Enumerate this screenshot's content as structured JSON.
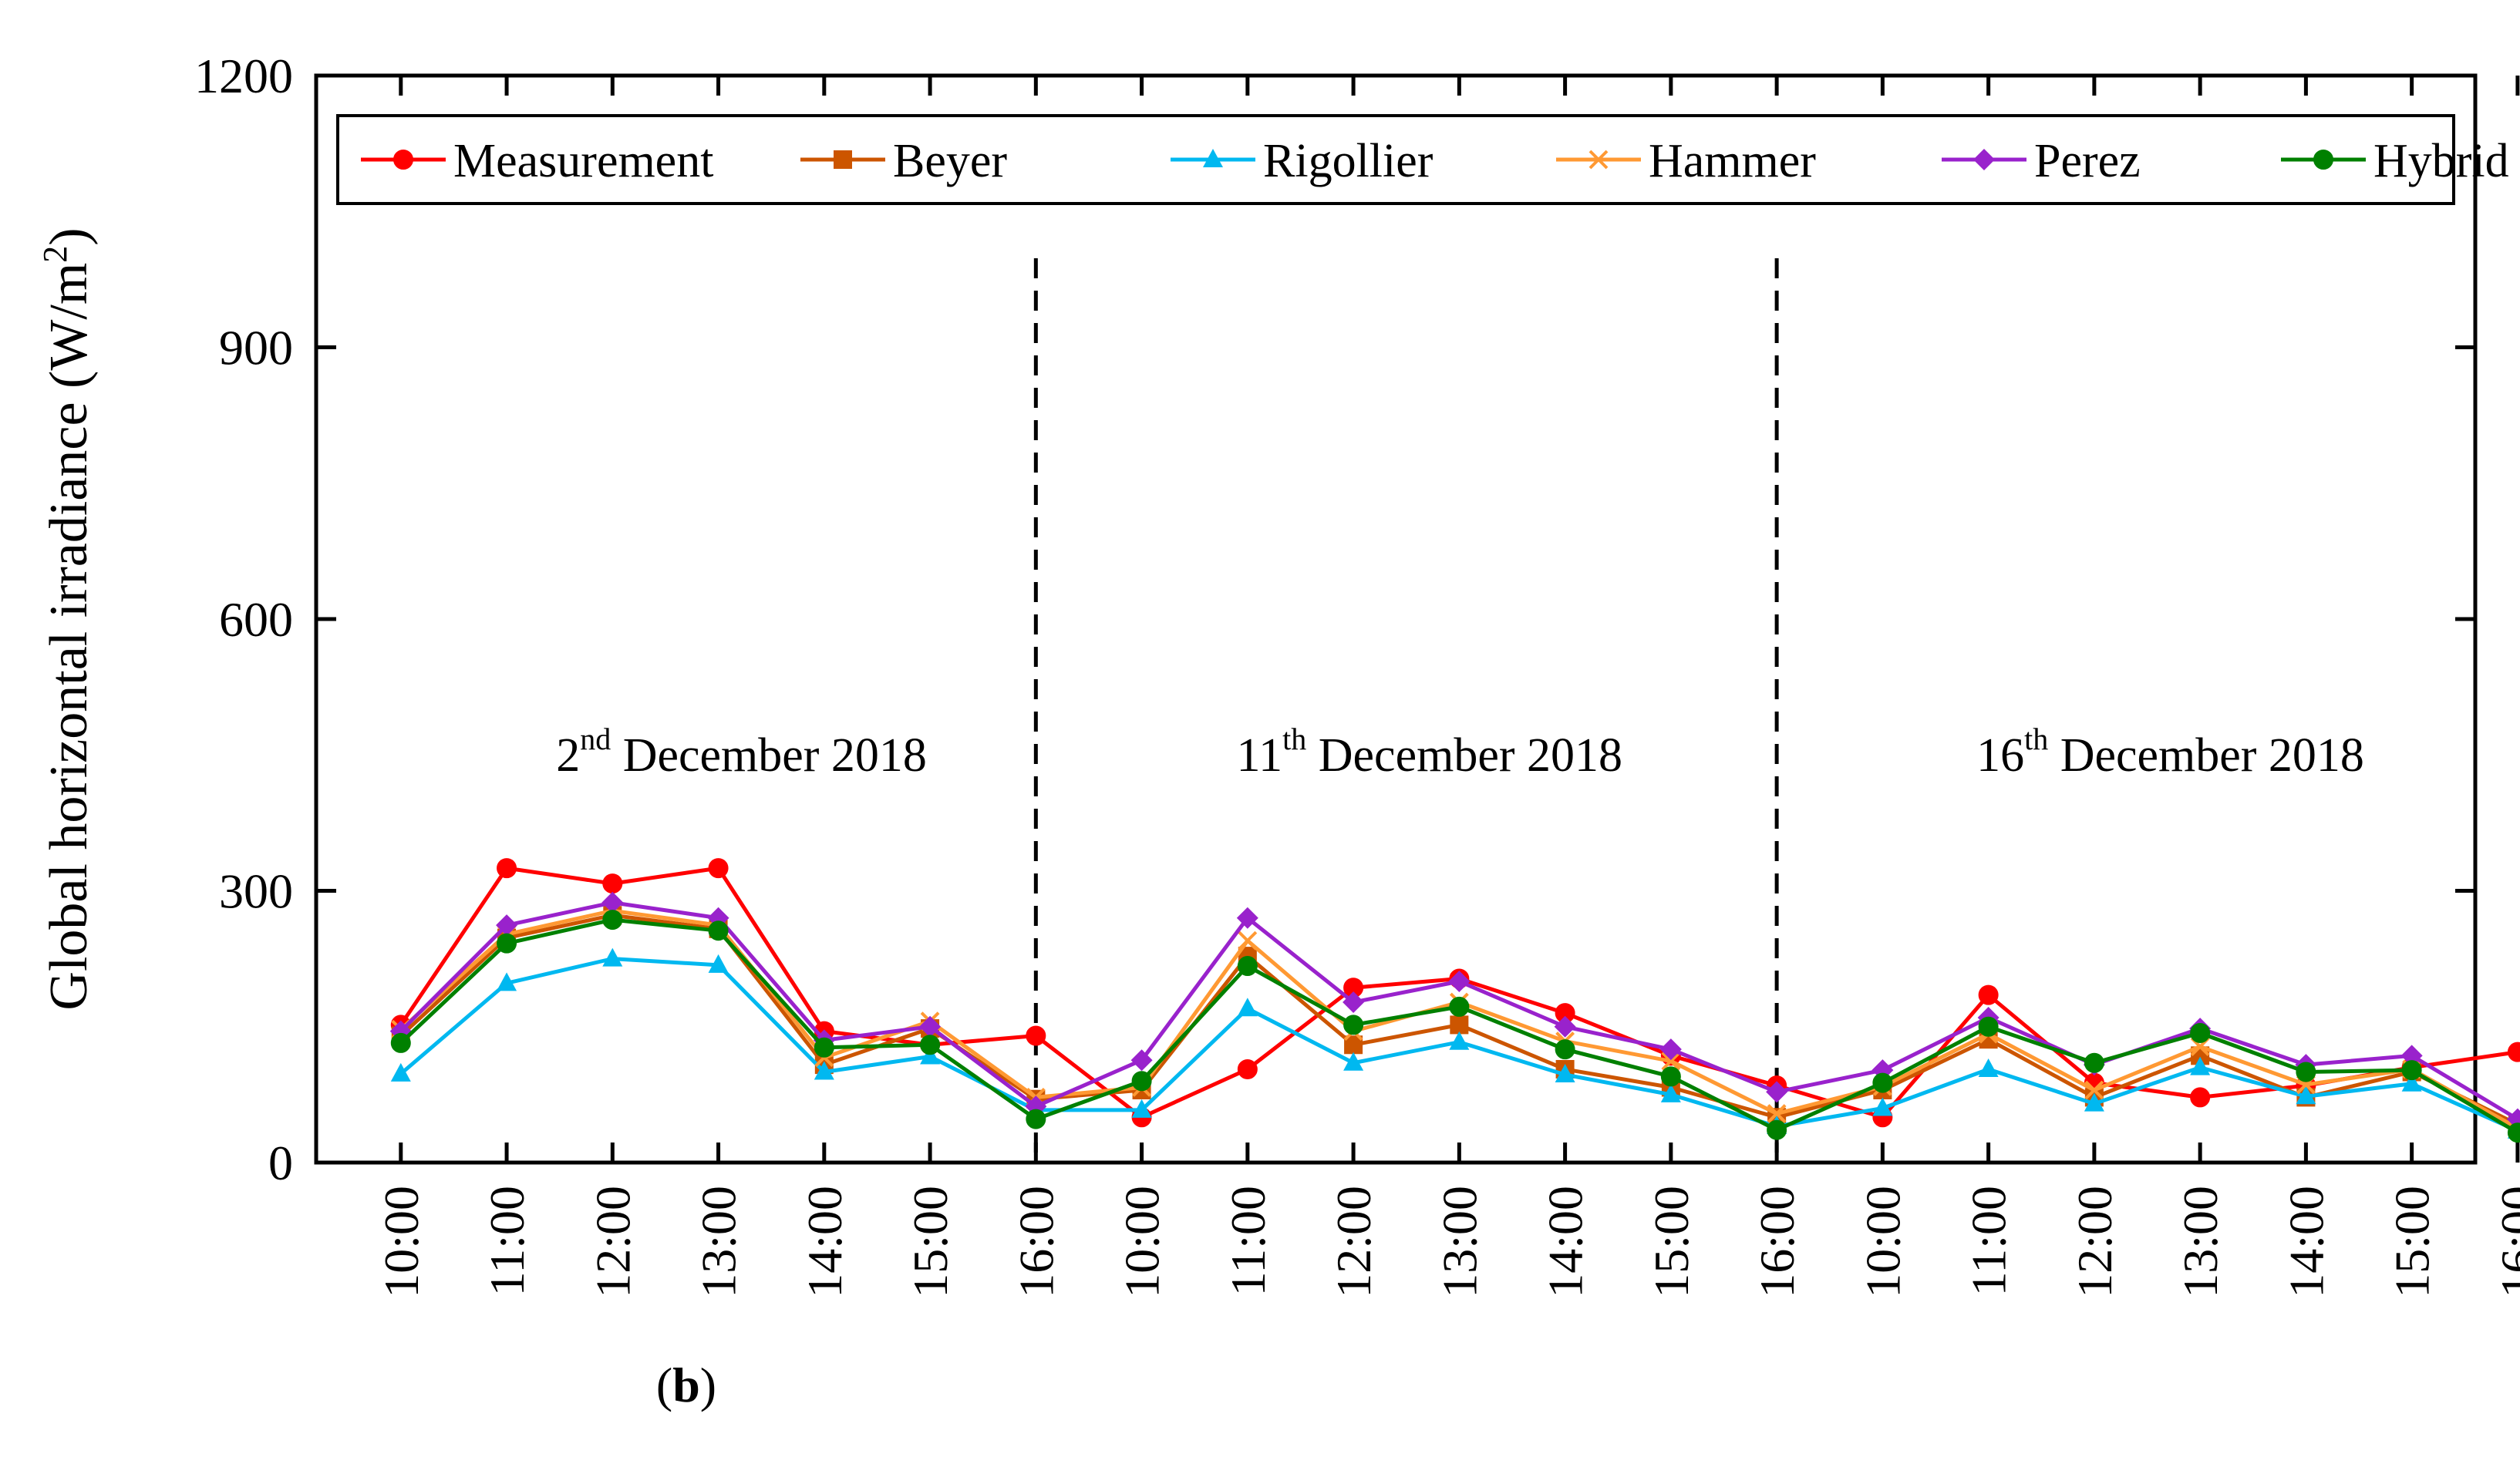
{
  "chart_data": {
    "type": "line",
    "ylabel": "Global horizontal irradiance (W/m",
    "ylabel_sup": "2",
    "ylabel_close": ")",
    "ylim": [
      0,
      1200
    ],
    "yticks": [
      "0",
      "300",
      "600",
      "900",
      "1200"
    ],
    "categories": [
      "10:00",
      "11:00",
      "12:00",
      "13:00",
      "14:00",
      "15:00",
      "16:00",
      "10:00",
      "11:00",
      "12:00",
      "13:00",
      "14:00",
      "15:00",
      "16:00",
      "10:00",
      "11:00",
      "12:00",
      "13:00",
      "14:00",
      "15:00",
      "16:00"
    ],
    "day_labels": [
      {
        "base": "2",
        "sup": "nd",
        "rest": " December 2018"
      },
      {
        "base": "11",
        "sup": "th",
        "rest": " December 2018"
      },
      {
        "base": "16",
        "sup": "th",
        "rest": " December 2018"
      }
    ],
    "dividers_after_index": [
      6,
      13
    ],
    "legend_position": "top",
    "grid": false,
    "series": [
      {
        "name": "Measurement",
        "color": "#ff0000",
        "marker": "circle",
        "values": [
          152,
          325,
          308,
          325,
          145,
          130,
          140,
          50,
          103,
          193,
          203,
          165,
          118,
          85,
          50,
          185,
          88,
          72,
          85,
          105,
          122
        ]
      },
      {
        "name": "Beyer",
        "color": "#cc5500",
        "marker": "square",
        "values": [
          140,
          248,
          273,
          258,
          108,
          148,
          70,
          80,
          228,
          130,
          152,
          103,
          83,
          50,
          80,
          136,
          72,
          118,
          72,
          100,
          42
        ]
      },
      {
        "name": "Rigollier",
        "color": "#00b8f0",
        "marker": "triangle",
        "values": [
          98,
          198,
          225,
          218,
          100,
          117,
          58,
          58,
          170,
          110,
          133,
          97,
          75,
          40,
          60,
          103,
          65,
          105,
          73,
          87,
          35
        ]
      },
      {
        "name": "Hammer",
        "color": "#ff9933",
        "marker": "x",
        "values": [
          147,
          252,
          278,
          262,
          116,
          156,
          72,
          83,
          245,
          145,
          177,
          134,
          112,
          54,
          84,
          142,
          80,
          128,
          86,
          103,
          38
        ]
      },
      {
        "name": "Perez",
        "color": "#9922cc",
        "marker": "diamond",
        "values": [
          145,
          262,
          287,
          270,
          135,
          150,
          62,
          113,
          270,
          177,
          200,
          150,
          125,
          78,
          102,
          160,
          108,
          148,
          108,
          118,
          48
        ]
      },
      {
        "name": "Hybrid",
        "color": "#008000",
        "marker": "circle",
        "values": [
          132,
          242,
          268,
          256,
          127,
          130,
          48,
          90,
          217,
          152,
          172,
          125,
          95,
          36,
          88,
          150,
          110,
          143,
          100,
          102,
          33
        ]
      }
    ]
  },
  "caption": {
    "open": "(",
    "letter": "b",
    "close": ")"
  }
}
